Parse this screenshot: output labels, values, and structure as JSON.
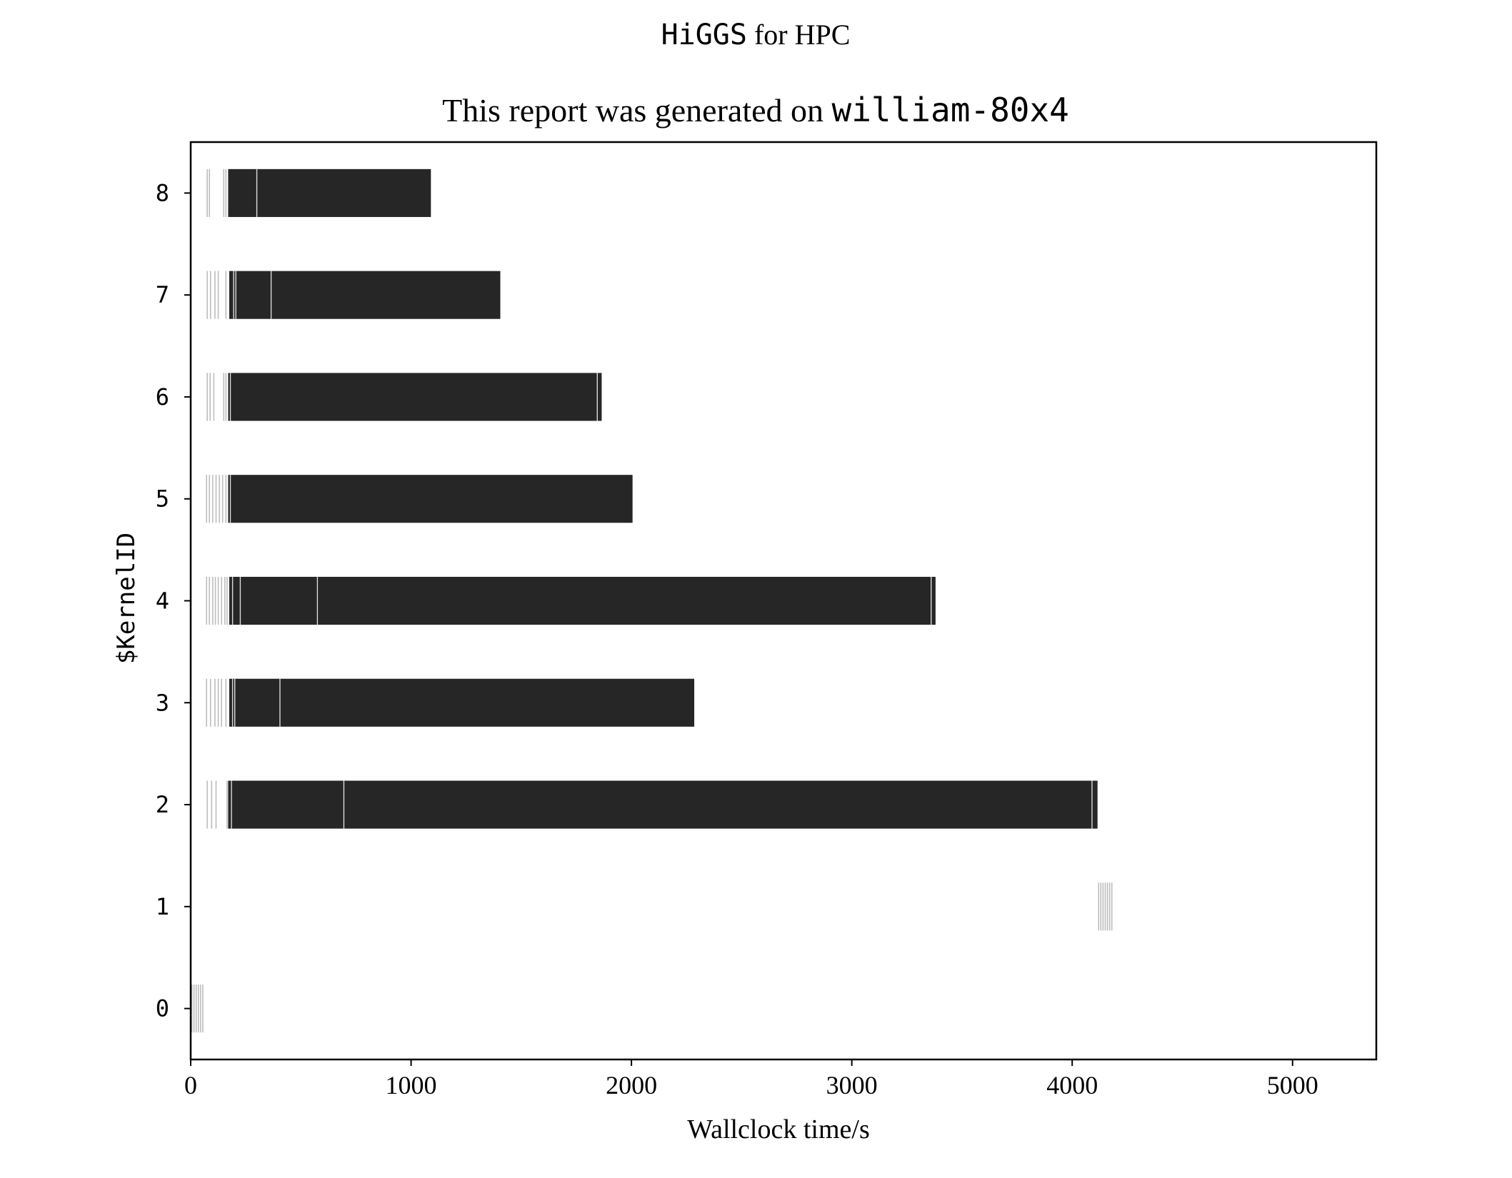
{
  "chart_data": {
    "type": "bar",
    "orientation": "horizontal",
    "title": {
      "line1_code": "HiGGS",
      "line1_text": " for HPC",
      "line2_text": "This report was generated on ",
      "line2_code": "william-80x4"
    },
    "xlabel": "Wallclock time/s",
    "ylabel": "$KernelID",
    "xlim": [
      0,
      5380
    ],
    "ylim": [
      -0.5,
      8.5
    ],
    "xticks": [
      0,
      1000,
      2000,
      3000,
      4000,
      5000
    ],
    "yticks": [
      0,
      1,
      2,
      3,
      4,
      5,
      6,
      7,
      8
    ],
    "bar_height": 0.47,
    "colors": {
      "bar": "#262626",
      "sliver": "#bdbdbd",
      "axis": "#000000"
    },
    "kernels": [
      {
        "id": 8,
        "start": 170,
        "end": 1090,
        "slivers": [
          75,
          85,
          150,
          160
        ],
        "breaks": [
          300
        ]
      },
      {
        "id": 7,
        "start": 175,
        "end": 1405,
        "slivers": [
          75,
          90,
          110,
          125,
          160
        ],
        "breaks": [
          195,
          205,
          365
        ]
      },
      {
        "id": 6,
        "start": 170,
        "end": 1865,
        "slivers": [
          75,
          88,
          105,
          150,
          160
        ],
        "breaks": [
          180,
          1845
        ]
      },
      {
        "id": 5,
        "start": 170,
        "end": 2005,
        "slivers": [
          72,
          85,
          100,
          115,
          130,
          145,
          160
        ],
        "breaks": [
          180
        ]
      },
      {
        "id": 4,
        "start": 175,
        "end": 3380,
        "slivers": [
          72,
          85,
          100,
          112,
          125,
          140,
          155,
          165
        ],
        "breaks": [
          190,
          225,
          575,
          3360
        ]
      },
      {
        "id": 3,
        "start": 175,
        "end": 2285,
        "slivers": [
          72,
          90,
          110,
          125,
          140,
          160
        ],
        "breaks": [
          190,
          200,
          405
        ]
      },
      {
        "id": 2,
        "start": 170,
        "end": 4115,
        "slivers": [
          75,
          95,
          115,
          165
        ],
        "breaks": [
          185,
          695,
          4090
        ]
      },
      {
        "id": 1,
        "start": null,
        "end": null,
        "slivers": [
          4120,
          4130,
          4140,
          4150,
          4160,
          4170,
          4180
        ],
        "breaks": []
      },
      {
        "id": 0,
        "start": null,
        "end": null,
        "slivers": [
          5,
          15,
          25,
          35,
          45,
          55
        ],
        "breaks": []
      }
    ]
  }
}
